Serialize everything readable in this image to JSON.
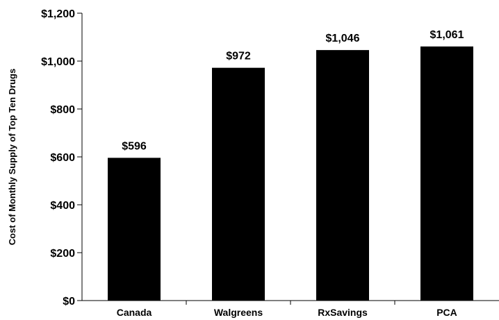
{
  "chart_data": {
    "type": "bar",
    "categories": [
      "Canada",
      "Walgreens",
      "RxSavings",
      "PCA"
    ],
    "values": [
      596,
      972,
      1046,
      1061
    ],
    "data_labels": [
      "$596",
      "$972",
      "$1,046",
      "$1,061"
    ],
    "title": "",
    "xlabel": "",
    "ylabel": "Cost of Monthly Supply of Top Ten Drugs",
    "ylim": [
      0,
      1200
    ],
    "yticks": [
      0,
      200,
      400,
      600,
      800,
      1000,
      1200
    ],
    "ytick_labels": [
      "$0",
      "$200",
      "$400",
      "$600",
      "$800",
      "$1,000",
      "$1,200"
    ],
    "grid": false,
    "bar_color": "#000000"
  }
}
